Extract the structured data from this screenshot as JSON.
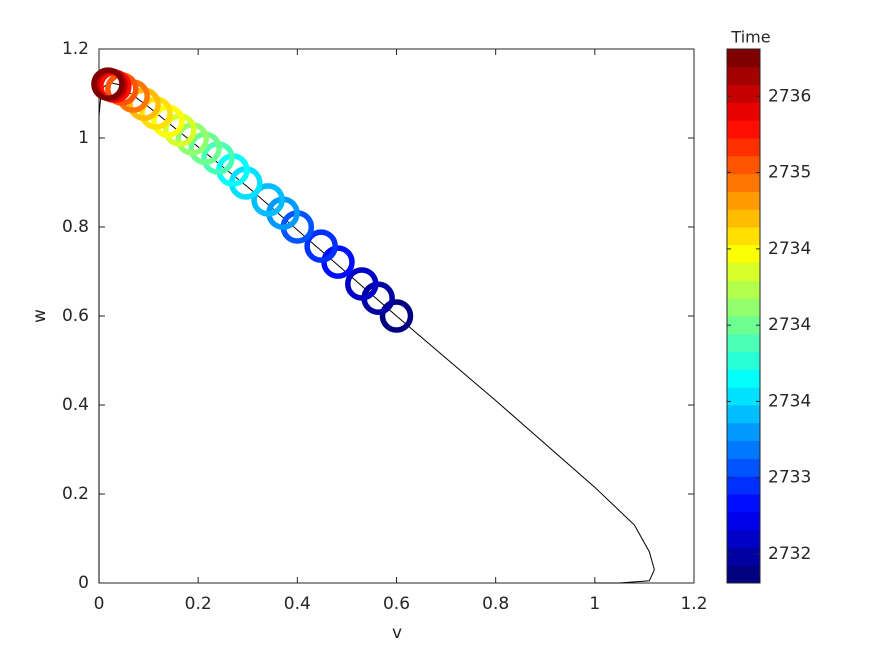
{
  "chart_data": {
    "type": "scatter",
    "xlabel": "v",
    "ylabel": "w",
    "xlim": [
      0,
      1.2
    ],
    "xticks": [
      0,
      0.2,
      0.4,
      0.6,
      0.8,
      1,
      1.2
    ],
    "ylim": [
      0,
      1.2
    ],
    "yticks": [
      0,
      0.2,
      0.4,
      0.6,
      0.8,
      1,
      1.2
    ],
    "trajectory": {
      "color": "#000000",
      "x": [
        1.0,
        1.05,
        1.11,
        1.12,
        1.11,
        1.08,
        1.0,
        0.8,
        0.6,
        0.3,
        0.1,
        0.04,
        0.02,
        0.005,
        0,
        0
      ],
      "y": [
        0.0,
        0.0,
        0.005,
        0.03,
        0.07,
        0.13,
        0.215,
        0.41,
        0.6,
        0.89,
        1.07,
        1.12,
        1.125,
        1.11,
        1.05,
        0.0
      ]
    },
    "points": {
      "x": [
        0.6,
        0.563,
        0.53,
        0.482,
        0.448,
        0.4,
        0.371,
        0.341,
        0.296,
        0.27,
        0.24,
        0.214,
        0.188,
        0.163,
        0.139,
        0.115,
        0.091,
        0.069,
        0.046,
        0.032,
        0.024,
        0.018
      ],
      "y": [
        0.6,
        0.64,
        0.672,
        0.721,
        0.757,
        0.8,
        0.831,
        0.861,
        0.899,
        0.928,
        0.955,
        0.977,
        0.998,
        1.018,
        1.038,
        1.056,
        1.076,
        1.094,
        1.11,
        1.116,
        1.119,
        1.121
      ],
      "time": [
        2732.35,
        2732.5,
        2732.65,
        2732.8,
        2732.95,
        2733.1,
        2733.25,
        2733.4,
        2733.55,
        2733.7,
        2733.85,
        2734.0,
        2734.15,
        2734.3,
        2734.45,
        2734.6,
        2734.75,
        2734.9,
        2735.1,
        2735.3,
        2735.5,
        2735.75
      ]
    },
    "colorbar": {
      "title": "Time",
      "colormap": "jet",
      "levels": 30,
      "clim": [
        2732.31,
        2735.81
      ],
      "ticks": [
        {
          "value": 2732.5,
          "label": "2732"
        },
        {
          "value": 2733,
          "label": "2733"
        },
        {
          "value": 2733.5,
          "label": "2734"
        },
        {
          "value": 2734,
          "label": "2734"
        },
        {
          "value": 2734.5,
          "label": "2734"
        },
        {
          "value": 2735,
          "label": "2735"
        },
        {
          "value": 2735.5,
          "label": "2736"
        }
      ]
    }
  }
}
